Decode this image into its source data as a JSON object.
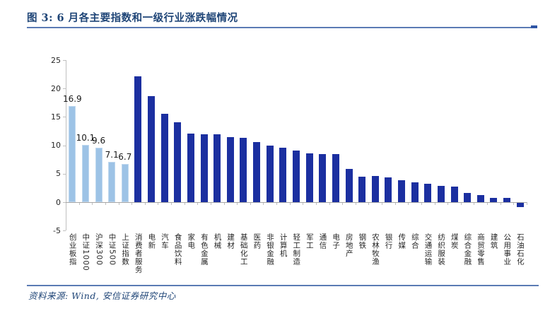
{
  "figure": {
    "title": "图 3: 6 月各主要指数和一级行业涨跌幅情况",
    "source_note": "资料来源: Wind, 安信证券研究中心"
  },
  "colors": {
    "title_navy": "#1F4577",
    "rule_blue": "#5B7BB4",
    "rule_accent": "#2E55A5",
    "index_bar": "#9DC3E6",
    "industry_bar": "#1B2FA0",
    "axis_gray": "#A6A6A6",
    "tick_gray": "#BFBFBF",
    "axis_text": "#262626"
  },
  "chart_data": {
    "type": "bar",
    "title": "6 月各主要指数和一级行业涨跌幅情况",
    "xlabel": "",
    "ylabel": "",
    "ylim": [
      -5,
      25
    ],
    "yticks": [
      25,
      20,
      15,
      10,
      5,
      0,
      -5
    ],
    "grid": false,
    "legend": false,
    "categories": [
      "创业板指",
      "中证1000",
      "沪深300",
      "中证500",
      "上证指数",
      "消费者服务",
      "电新",
      "汽车",
      "食品饮料",
      "家电",
      "有色金属",
      "机械",
      "建材",
      "基础化工",
      "医药",
      "非银金融",
      "计算机",
      "轻工制造",
      "军工",
      "通信",
      "电子",
      "房地产",
      "钢铁",
      "农林牧渔",
      "银行",
      "传媒",
      "综合",
      "交通运输",
      "纺织服装",
      "煤炭",
      "综合金融",
      "商贸零售",
      "建筑",
      "公用事业",
      "石油石化"
    ],
    "values": [
      16.9,
      10.1,
      9.6,
      7.1,
      6.7,
      22.1,
      18.7,
      15.5,
      14.0,
      12.1,
      12.0,
      12.0,
      11.4,
      11.3,
      10.6,
      9.9,
      9.6,
      9.1,
      8.6,
      8.5,
      8.4,
      5.9,
      4.5,
      4.6,
      4.4,
      3.9,
      3.5,
      3.2,
      2.8,
      2.7,
      1.6,
      1.2,
      0.8,
      0.7,
      -0.7
    ],
    "groups": [
      "index",
      "index",
      "index",
      "index",
      "index",
      "industry",
      "industry",
      "industry",
      "industry",
      "industry",
      "industry",
      "industry",
      "industry",
      "industry",
      "industry",
      "industry",
      "industry",
      "industry",
      "industry",
      "industry",
      "industry",
      "industry",
      "industry",
      "industry",
      "industry",
      "industry",
      "industry",
      "industry",
      "industry",
      "industry",
      "industry",
      "industry",
      "industry",
      "industry",
      "industry"
    ],
    "value_labels": [
      "16.9",
      "10.1",
      "9.6",
      "7.1",
      "6.7"
    ]
  }
}
